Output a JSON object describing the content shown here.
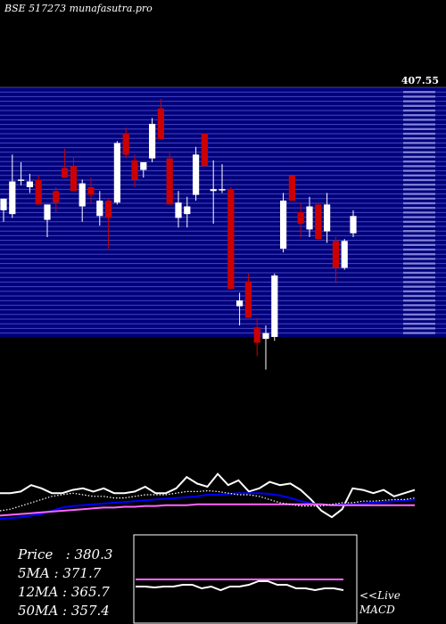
{
  "header": {
    "symbol_title": "BSE 517273 munafasutra.pro"
  },
  "top_right_price": "407.55",
  "chart_data": [
    {
      "type": "candlestick",
      "title": "BSE 517273 munafasutra.pro",
      "description_series": "daily OHLC candles, white = up, red = down",
      "ylim": [
        300,
        430
      ],
      "candles": [
        {
          "o": 366,
          "h": 372,
          "l": 360,
          "c": 372,
          "dir": "up"
        },
        {
          "o": 364,
          "h": 395,
          "l": 362,
          "c": 381,
          "dir": "up"
        },
        {
          "o": 382,
          "h": 391,
          "l": 379,
          "c": 382,
          "dir": "up"
        },
        {
          "o": 378,
          "h": 385,
          "l": 375,
          "c": 381,
          "dir": "up"
        },
        {
          "o": 382,
          "h": 384,
          "l": 369,
          "c": 369,
          "dir": "down"
        },
        {
          "o": 361,
          "h": 368,
          "l": 352,
          "c": 369,
          "dir": "up"
        },
        {
          "o": 376,
          "h": 378,
          "l": 365,
          "c": 370,
          "dir": "down"
        },
        {
          "o": 388,
          "h": 398,
          "l": 383,
          "c": 383,
          "dir": "down"
        },
        {
          "o": 389,
          "h": 394,
          "l": 376,
          "c": 376,
          "dir": "down"
        },
        {
          "o": 368,
          "h": 382,
          "l": 360,
          "c": 380,
          "dir": "up"
        },
        {
          "o": 378,
          "h": 383,
          "l": 370,
          "c": 374,
          "dir": "down"
        },
        {
          "o": 363,
          "h": 376,
          "l": 358,
          "c": 371,
          "dir": "up"
        },
        {
          "o": 371,
          "h": 372,
          "l": 346,
          "c": 362,
          "dir": "down"
        },
        {
          "o": 370,
          "h": 402,
          "l": 369,
          "c": 401,
          "dir": "up"
        },
        {
          "o": 406,
          "h": 409,
          "l": 393,
          "c": 395,
          "dir": "down"
        },
        {
          "o": 392,
          "h": 395,
          "l": 378,
          "c": 382,
          "dir": "down"
        },
        {
          "o": 387,
          "h": 391,
          "l": 383,
          "c": 391,
          "dir": "up"
        },
        {
          "o": 393,
          "h": 414,
          "l": 391,
          "c": 411,
          "dir": "up"
        },
        {
          "o": 419,
          "h": 424,
          "l": 403,
          "c": 403,
          "dir": "down"
        },
        {
          "o": 393,
          "h": 396,
          "l": 369,
          "c": 369,
          "dir": "down"
        },
        {
          "o": 362,
          "h": 376,
          "l": 357,
          "c": 370,
          "dir": "up"
        },
        {
          "o": 364,
          "h": 373,
          "l": 357,
          "c": 368,
          "dir": "up"
        },
        {
          "o": 374,
          "h": 399,
          "l": 371,
          "c": 395,
          "dir": "up"
        },
        {
          "o": 406,
          "h": 406,
          "l": 389,
          "c": 389,
          "dir": "down"
        },
        {
          "o": 376,
          "h": 392,
          "l": 359,
          "c": 377,
          "dir": "up"
        },
        {
          "o": 377,
          "h": 390,
          "l": 375,
          "c": 377,
          "dir": "up"
        },
        {
          "o": 377,
          "h": 378,
          "l": 325,
          "c": 325,
          "dir": "down"
        },
        {
          "o": 319,
          "h": 323,
          "l": 306,
          "c": 316,
          "dir": "up"
        },
        {
          "o": 329,
          "h": 333,
          "l": 310,
          "c": 310,
          "dir": "down"
        },
        {
          "o": 305,
          "h": 310,
          "l": 290,
          "c": 297,
          "dir": "down"
        },
        {
          "o": 299,
          "h": 306,
          "l": 283,
          "c": 302,
          "dir": "up"
        },
        {
          "o": 300,
          "h": 333,
          "l": 298,
          "c": 332,
          "dir": "up"
        },
        {
          "o": 346,
          "h": 375,
          "l": 344,
          "c": 371,
          "dir": "up"
        },
        {
          "o": 384,
          "h": 384,
          "l": 371,
          "c": 371,
          "dir": "down"
        },
        {
          "o": 365,
          "h": 370,
          "l": 352,
          "c": 359,
          "dir": "down"
        },
        {
          "o": 356,
          "h": 373,
          "l": 352,
          "c": 368,
          "dir": "up"
        },
        {
          "o": 369,
          "h": 369,
          "l": 351,
          "c": 351,
          "dir": "down"
        },
        {
          "o": 355,
          "h": 375,
          "l": 349,
          "c": 369,
          "dir": "up"
        },
        {
          "o": 350,
          "h": 352,
          "l": 328,
          "c": 336,
          "dir": "down"
        },
        {
          "o": 336,
          "h": 351,
          "l": 335,
          "c": 350,
          "dir": "up"
        },
        {
          "o": 354,
          "h": 366,
          "l": 352,
          "c": 363,
          "dir": "up"
        }
      ],
      "grid": true
    },
    {
      "type": "line",
      "panel": "indicator",
      "series": [
        {
          "color": "#ffffff",
          "values": [
            52,
            52,
            54,
            62,
            58,
            52,
            52,
            56,
            58,
            54,
            58,
            52,
            52,
            54,
            60,
            52,
            52,
            58,
            72,
            64,
            60,
            76,
            62,
            68,
            54,
            58,
            66,
            62,
            64,
            56,
            44,
            30,
            22,
            32,
            58,
            56,
            52,
            56,
            48,
            52,
            56
          ]
        },
        {
          "color": "#0000ff",
          "values": [
            20,
            21,
            22,
            24,
            26,
            30,
            34,
            36,
            37,
            38,
            39,
            40,
            41,
            42,
            43,
            44,
            45,
            46,
            47,
            48,
            50,
            50,
            51,
            52,
            52,
            52,
            51,
            49,
            46,
            42,
            39,
            38,
            37,
            38,
            38,
            39,
            40,
            41,
            42,
            43,
            44
          ]
        },
        {
          "color": "#ff66ff",
          "values": [
            24,
            25,
            26,
            27,
            28,
            29,
            30,
            31,
            32,
            33,
            34,
            34,
            35,
            35,
            36,
            36,
            37,
            37,
            37,
            38,
            38,
            38,
            38,
            38,
            38,
            38,
            38,
            38,
            38,
            38,
            38,
            38,
            37,
            37,
            37,
            37,
            37,
            37,
            37,
            37,
            37
          ]
        },
        {
          "color": "#ffffff",
          "style": "dotted",
          "values": [
            30,
            32,
            36,
            40,
            44,
            48,
            50,
            52,
            50,
            48,
            48,
            46,
            46,
            48,
            50,
            50,
            50,
            52,
            54,
            54,
            55,
            54,
            52,
            50,
            50,
            48,
            44,
            40,
            38,
            36,
            36,
            36,
            38,
            40,
            40,
            42,
            42,
            43,
            44,
            44,
            46
          ]
        }
      ],
      "ylim": [
        0,
        100
      ]
    },
    {
      "type": "line",
      "panel": "macd",
      "series": [
        {
          "color": "#ff66ff",
          "values": [
            50,
            50,
            50,
            50,
            50,
            50,
            50,
            50,
            50,
            50,
            50,
            50,
            50,
            50,
            50,
            50,
            50,
            50,
            50,
            50,
            50,
            50,
            50
          ]
        },
        {
          "color": "#ffffff",
          "values": [
            42,
            42,
            41,
            42,
            42,
            44,
            44,
            40,
            42,
            38,
            42,
            42,
            44,
            48,
            48,
            44,
            44,
            40,
            40,
            38,
            40,
            40,
            38
          ]
        }
      ],
      "ylim": [
        0,
        100
      ]
    }
  ],
  "stats": {
    "price": "Price   : 380.3",
    "ma5": "5MA : 371.7",
    "ma12": "12MA : 365.7",
    "ma50": "50MA : 357.4"
  },
  "live": {
    "line1": "<<Live",
    "line2": "MACD"
  },
  "colors": {
    "background": "#000000",
    "grid_band": "#00007a",
    "grid_line": "#8080ff",
    "up": "#ffffff",
    "down": "#cc0000"
  }
}
